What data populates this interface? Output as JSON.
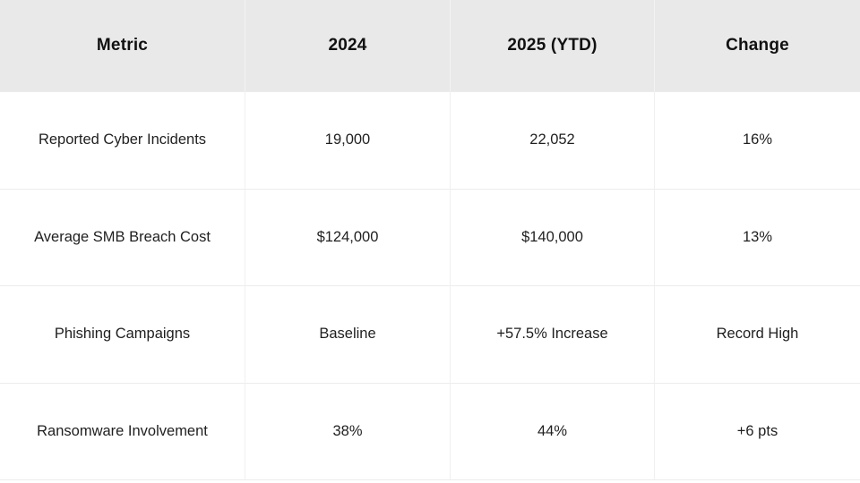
{
  "chart_data": {
    "type": "table",
    "title": "",
    "columns": [
      "Metric",
      "2024",
      "2025 (YTD)",
      "Change"
    ],
    "rows": [
      [
        "Reported Cyber Incidents",
        "19,000",
        "22,052",
        "16%"
      ],
      [
        "Average SMB Breach Cost",
        "$124,000",
        "$140,000",
        "13%"
      ],
      [
        "Phishing Campaigns",
        "Baseline",
        "+57.5% Increase",
        "Record High"
      ],
      [
        "Ransomware Involvement",
        "38%",
        "44%",
        "+6 pts"
      ]
    ],
    "layout_hints": {
      "header_background": "#e9e9e9",
      "body_background": "#ffffff",
      "border_color": "#ececec",
      "header_text_color": "#111111",
      "body_text_color": "#1f1f1f",
      "alignment": "center"
    }
  }
}
